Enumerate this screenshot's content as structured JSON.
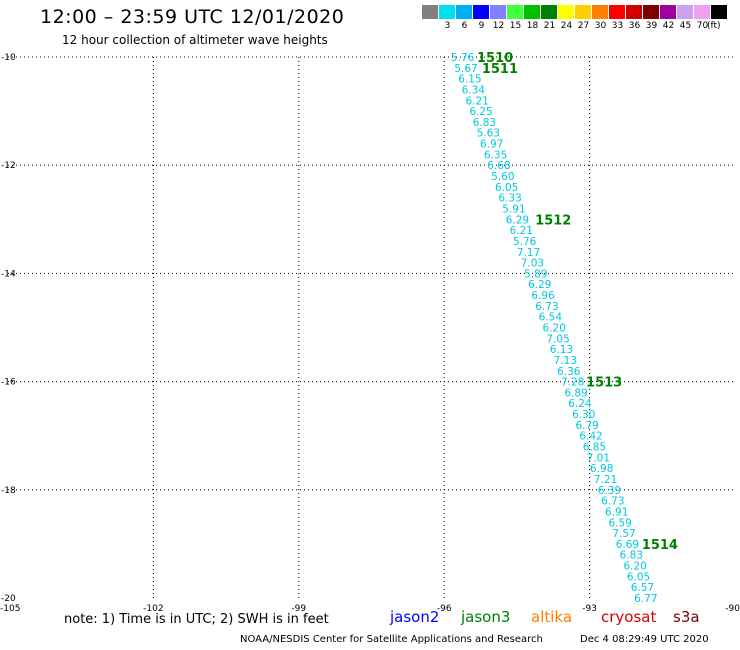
{
  "header": {
    "title": "12:00 – 23:59 UTC 12/01/2020",
    "subtitle": "12 hour collection of altimeter wave heights"
  },
  "legend": {
    "unit": "(ft)",
    "swatches": [
      {
        "label": "",
        "color": "#808080"
      },
      {
        "label": "3",
        "color": "#00e0f0"
      },
      {
        "label": "6",
        "color": "#00b0f0"
      },
      {
        "label": "9",
        "color": "#0000ff"
      },
      {
        "label": "12",
        "color": "#8080ff"
      },
      {
        "label": "15",
        "color": "#40ff40"
      },
      {
        "label": "18",
        "color": "#00c000"
      },
      {
        "label": "21",
        "color": "#008000"
      },
      {
        "label": "24",
        "color": "#ffff00"
      },
      {
        "label": "27",
        "color": "#ffd000"
      },
      {
        "label": "30",
        "color": "#ff8000"
      },
      {
        "label": "33",
        "color": "#ff0000"
      },
      {
        "label": "36",
        "color": "#d00000"
      },
      {
        "label": "39",
        "color": "#800000"
      },
      {
        "label": "42",
        "color": "#a000a0"
      },
      {
        "label": "45",
        "color": "#d0a0f0"
      },
      {
        "label": "70",
        "color": "#f0a0f0"
      },
      {
        "label": "",
        "color": "#000000"
      }
    ]
  },
  "footer": {
    "note": "note: 1) Time is in UTC; 2) SWH is in feet",
    "satellites": [
      {
        "name": "jason2",
        "color": "#0000ff"
      },
      {
        "name": "jason3",
        "color": "#008000"
      },
      {
        "name": "altika",
        "color": "#ff8000"
      },
      {
        "name": "cryosat",
        "color": "#d00000"
      },
      {
        "name": "s3a",
        "color": "#800000"
      }
    ],
    "credit": "NOAA/NESDIS Center for Satellite Applications and Research",
    "timestamp": "Dec  4 08:29:49 UTC 2020"
  },
  "chart_data": {
    "type": "scatter",
    "xlim": [
      -105,
      -90
    ],
    "ylim": [
      -20,
      -10
    ],
    "x_ticks": [
      "-105",
      "-102",
      "-99",
      "-96",
      "-93",
      "-90"
    ],
    "y_ticks": [
      "-10",
      "-12",
      "-14",
      "-16",
      "-18",
      "-20"
    ],
    "grid": true,
    "track_color": "#00c8e0",
    "time_color": "#008000",
    "points": [
      {
        "lon": -95.62,
        "lat": -10.0,
        "swh": "5.76"
      },
      {
        "lon": -95.55,
        "lat": -10.2,
        "swh": "5.67"
      },
      {
        "lon": -95.47,
        "lat": -10.4,
        "swh": "6.15"
      },
      {
        "lon": -95.4,
        "lat": -10.6,
        "swh": "6.34"
      },
      {
        "lon": -95.32,
        "lat": -10.8,
        "swh": "6.21"
      },
      {
        "lon": -95.24,
        "lat": -11.0,
        "swh": "6.25"
      },
      {
        "lon": -95.17,
        "lat": -11.2,
        "swh": "6.83"
      },
      {
        "lon": -95.09,
        "lat": -11.4,
        "swh": "5.63"
      },
      {
        "lon": -95.02,
        "lat": -11.6,
        "swh": "6.97"
      },
      {
        "lon": -94.94,
        "lat": -11.8,
        "swh": "6.35"
      },
      {
        "lon": -94.87,
        "lat": -12.0,
        "swh": "6.68"
      },
      {
        "lon": -94.79,
        "lat": -12.2,
        "swh": "5.60"
      },
      {
        "lon": -94.71,
        "lat": -12.4,
        "swh": "6.05"
      },
      {
        "lon": -94.64,
        "lat": -12.6,
        "swh": "6.33"
      },
      {
        "lon": -94.56,
        "lat": -12.8,
        "swh": "5.91"
      },
      {
        "lon": -94.49,
        "lat": -13.0,
        "swh": "6.29"
      },
      {
        "lon": -94.41,
        "lat": -13.2,
        "swh": "6.21"
      },
      {
        "lon": -94.34,
        "lat": -13.4,
        "swh": "5.76"
      },
      {
        "lon": -94.26,
        "lat": -13.6,
        "swh": "7.17"
      },
      {
        "lon": -94.18,
        "lat": -13.8,
        "swh": "7.03"
      },
      {
        "lon": -94.11,
        "lat": -14.0,
        "swh": "5.89"
      },
      {
        "lon": -94.03,
        "lat": -14.2,
        "swh": "6.29"
      },
      {
        "lon": -93.96,
        "lat": -14.4,
        "swh": "6.96"
      },
      {
        "lon": -93.88,
        "lat": -14.6,
        "swh": "6.73"
      },
      {
        "lon": -93.81,
        "lat": -14.8,
        "swh": "6.54"
      },
      {
        "lon": -93.73,
        "lat": -15.0,
        "swh": "6.20"
      },
      {
        "lon": -93.65,
        "lat": -15.2,
        "swh": "7.05"
      },
      {
        "lon": -93.58,
        "lat": -15.4,
        "swh": "6.13"
      },
      {
        "lon": -93.5,
        "lat": -15.6,
        "swh": "7.13"
      },
      {
        "lon": -93.43,
        "lat": -15.8,
        "swh": "6.36"
      },
      {
        "lon": -93.35,
        "lat": -16.0,
        "swh": "7.28"
      },
      {
        "lon": -93.28,
        "lat": -16.2,
        "swh": "6.89"
      },
      {
        "lon": -93.2,
        "lat": -16.4,
        "swh": "6.24"
      },
      {
        "lon": -93.12,
        "lat": -16.6,
        "swh": "6.30"
      },
      {
        "lon": -93.05,
        "lat": -16.8,
        "swh": "6.79"
      },
      {
        "lon": -92.97,
        "lat": -17.0,
        "swh": "6.42"
      },
      {
        "lon": -92.9,
        "lat": -17.2,
        "swh": "6.85"
      },
      {
        "lon": -92.82,
        "lat": -17.4,
        "swh": "7.01"
      },
      {
        "lon": -92.75,
        "lat": -17.6,
        "swh": "6.98"
      },
      {
        "lon": -92.67,
        "lat": -17.8,
        "swh": "7.21"
      },
      {
        "lon": -92.59,
        "lat": -18.0,
        "swh": "6.39"
      },
      {
        "lon": -92.52,
        "lat": -18.2,
        "swh": "6.73"
      },
      {
        "lon": -92.44,
        "lat": -18.4,
        "swh": "6.91"
      },
      {
        "lon": -92.37,
        "lat": -18.6,
        "swh": "6.59"
      },
      {
        "lon": -92.29,
        "lat": -18.8,
        "swh": "7.57"
      },
      {
        "lon": -92.22,
        "lat": -19.0,
        "swh": "6.69"
      },
      {
        "lon": -92.14,
        "lat": -19.2,
        "swh": "6.83"
      },
      {
        "lon": -92.06,
        "lat": -19.4,
        "swh": "6.20"
      },
      {
        "lon": -91.99,
        "lat": -19.6,
        "swh": "6.05"
      },
      {
        "lon": -91.91,
        "lat": -19.8,
        "swh": "6.57"
      },
      {
        "lon": -91.84,
        "lat": -20.0,
        "swh": "6.77"
      }
    ],
    "time_labels": [
      {
        "text": "1510",
        "lon": -94.95,
        "lat": -10.0
      },
      {
        "text": "1511",
        "lon": -94.85,
        "lat": -10.2
      },
      {
        "text": "1512",
        "lon": -93.75,
        "lat": -13.0
      },
      {
        "text": "1513",
        "lon": -92.7,
        "lat": -16.0
      },
      {
        "text": "1514",
        "lon": -91.55,
        "lat": -19.0
      }
    ]
  }
}
